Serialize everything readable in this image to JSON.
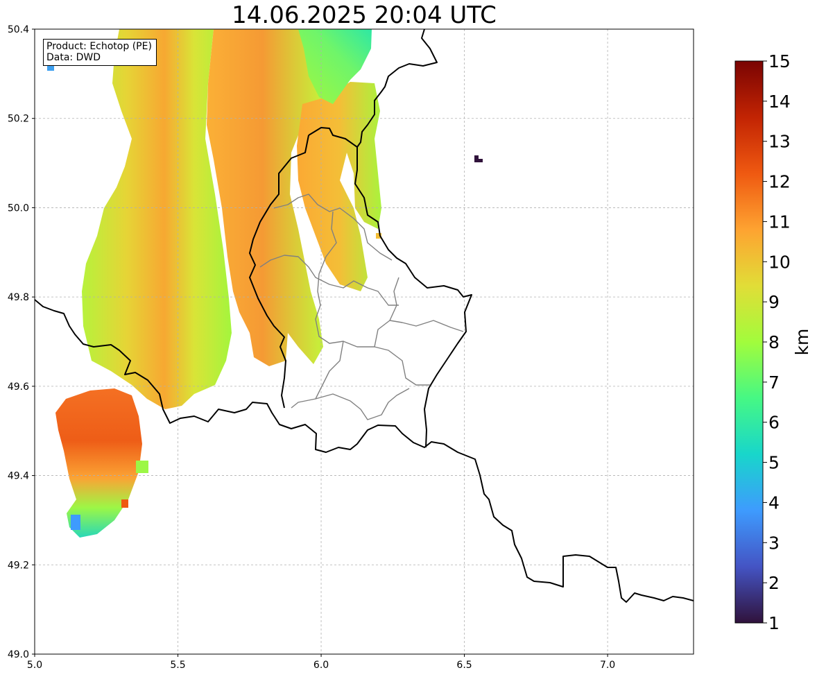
{
  "title": "14.06.2025 20:04 UTC",
  "info_box": {
    "product_line": "Product: Echotop (PE)",
    "data_line": "Data: DWD"
  },
  "map": {
    "lon_range": [
      5.0,
      7.3
    ],
    "lat_range": [
      49.0,
      50.4
    ],
    "x_ticks": [
      "5.0",
      "5.5",
      "6.0",
      "6.5",
      "7.0"
    ],
    "y_ticks": [
      "49.0",
      "49.2",
      "49.4",
      "49.6",
      "49.8",
      "50.0",
      "50.2",
      "50.4"
    ],
    "grid": true,
    "border_color": "#000000",
    "internal_border_color": "#808080"
  },
  "colorbar": {
    "label": "km",
    "min": 1,
    "max": 15,
    "ticks": [
      "1",
      "2",
      "3",
      "4",
      "5",
      "6",
      "7",
      "8",
      "9",
      "10",
      "11",
      "12",
      "13",
      "14",
      "15"
    ],
    "colormap": "turbo",
    "stops": [
      "#30123b",
      "#4454c4",
      "#3e9bfe",
      "#18d6cb",
      "#46f884",
      "#a2fc3c",
      "#e1dd37",
      "#fea331",
      "#ef5911",
      "#c22403",
      "#7a0403"
    ]
  }
}
